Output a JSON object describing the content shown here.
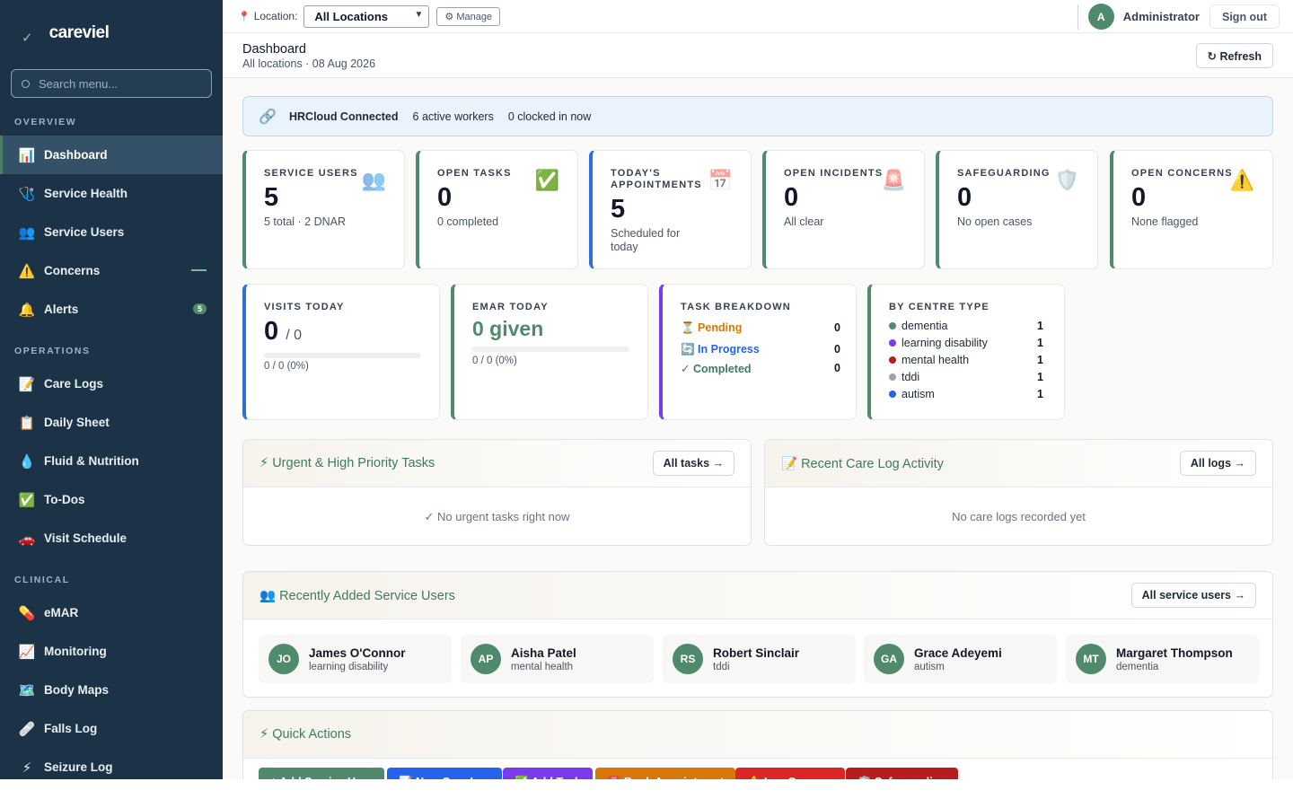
{
  "brand": {
    "name": "careviel"
  },
  "search": {
    "placeholder": "Search menu..."
  },
  "sidebar": {
    "sections": [
      {
        "title": "OVERVIEW",
        "items": [
          {
            "label": "Dashboard",
            "icon": "📊"
          },
          {
            "label": "Service Health",
            "icon": "🩺"
          },
          {
            "label": "Service Users",
            "icon": "👥"
          },
          {
            "label": "Concerns",
            "icon": "⚠️"
          },
          {
            "label": "Alerts",
            "icon": "🔔",
            "badge": "5"
          }
        ]
      },
      {
        "title": "OPERATIONS",
        "items": [
          {
            "label": "Care Logs",
            "icon": "📝"
          },
          {
            "label": "Daily Sheet",
            "icon": "📋"
          },
          {
            "label": "Fluid & Nutrition",
            "icon": "💧"
          },
          {
            "label": "To-Dos",
            "icon": "✅"
          },
          {
            "label": "Visit Schedule",
            "icon": "🚗"
          }
        ]
      },
      {
        "title": "CLINICAL",
        "items": [
          {
            "label": "eMAR",
            "icon": "💊"
          },
          {
            "label": "Monitoring",
            "icon": "📈"
          },
          {
            "label": "Body Maps",
            "icon": "🗺️"
          },
          {
            "label": "Falls Log",
            "icon": "🩹"
          },
          {
            "label": "Seizure Log",
            "icon": "⚡"
          }
        ]
      }
    ]
  },
  "topbar": {
    "location_label": "Location:",
    "location_value": "All Locations",
    "manage_label": "⚙ Manage",
    "avatar_initial": "A",
    "user_name": "Administrator",
    "signout_label": "Sign out"
  },
  "page": {
    "title": "Dashboard",
    "subtitle": "All locations · 08 Aug 2026",
    "refresh_label": "↻ Refresh"
  },
  "hrcloud": {
    "title": "HRCloud Connected",
    "active_workers": "6 active workers",
    "clocked_in": "0 clocked in now"
  },
  "stats": [
    {
      "label": "SERVICE USERS",
      "value": "5",
      "sub": "5 total · 2 DNAR",
      "icon": "👥"
    },
    {
      "label": "OPEN TASKS",
      "value": "0",
      "sub": "0 completed",
      "icon": "✅"
    },
    {
      "label": "TODAY'S APPOINTMENTS",
      "value": "5",
      "sub": "Scheduled for today",
      "icon": "📅"
    },
    {
      "label": "OPEN INCIDENTS",
      "value": "0",
      "sub": "All clear",
      "icon": "🚨"
    },
    {
      "label": "SAFEGUARDING",
      "value": "0",
      "sub": "No open cases",
      "icon": "🛡️"
    },
    {
      "label": "OPEN CONCERNS",
      "value": "0",
      "sub": "None flagged",
      "icon": "⚠️"
    }
  ],
  "visits": {
    "label": "VISITS TODAY",
    "value": "0",
    "frac": "/ 0",
    "sub": "0 / 0 (0%)",
    "progress": 0
  },
  "emar": {
    "label": "EMAR TODAY",
    "value": "0 given",
    "sub": "0 / 0 (0%)",
    "progress": 0
  },
  "task_breakdown": {
    "label": "TASK BREAKDOWN",
    "rows": [
      {
        "label": "⏳ Pending",
        "count": "0",
        "color": "#d97706"
      },
      {
        "label": "🔄 In Progress",
        "count": "0",
        "color": "#2563eb"
      },
      {
        "label": "✓ Completed",
        "count": "0",
        "color": "#3f7a5e"
      }
    ]
  },
  "centre_type": {
    "label": "BY CENTRE TYPE",
    "rows": [
      {
        "label": "dementia",
        "count": "1",
        "color": "#4f8a6c"
      },
      {
        "label": "learning disability",
        "count": "1",
        "color": "#7c3aed"
      },
      {
        "label": "mental health",
        "count": "1",
        "color": "#b91c1c"
      },
      {
        "label": "tddi",
        "count": "1",
        "color": "#9ca3af"
      },
      {
        "label": "autism",
        "count": "1",
        "color": "#2563eb"
      }
    ]
  },
  "urgent": {
    "title": "⚡ Urgent & High Priority Tasks",
    "button": "All tasks →",
    "empty": "✓ No urgent tasks right now"
  },
  "carelog": {
    "title": "📝 Recent Care Log Activity",
    "button": "All logs →",
    "empty": "No care logs recorded yet"
  },
  "recent_users": {
    "title": "👥 Recently Added Service Users",
    "button": "All service users →",
    "users": [
      {
        "initials": "JO",
        "name": "James O'Connor",
        "type": "learning disability"
      },
      {
        "initials": "AP",
        "name": "Aisha Patel",
        "type": "mental health"
      },
      {
        "initials": "RS",
        "name": "Robert Sinclair",
        "type": "tddi"
      },
      {
        "initials": "GA",
        "name": "Grace Adeyemi",
        "type": "autism"
      },
      {
        "initials": "MT",
        "name": "Margaret Thompson",
        "type": "dementia"
      }
    ]
  },
  "quick_actions": {
    "title": "⚡ Quick Actions",
    "buttons": [
      {
        "label": "+ Add Service User",
        "color": "#4f8a6c"
      },
      {
        "label": "📝 New Care Log",
        "color": "#2563eb"
      },
      {
        "label": "✅ Add Task",
        "color": "#7c3aed"
      },
      {
        "label": "📅 Book Appointment",
        "color": "#d97706"
      },
      {
        "label": "⚠️ Log Concern",
        "color": "#dc2626"
      },
      {
        "label": "🛡️ Safeguarding",
        "color": "#b91c1c"
      }
    ]
  }
}
